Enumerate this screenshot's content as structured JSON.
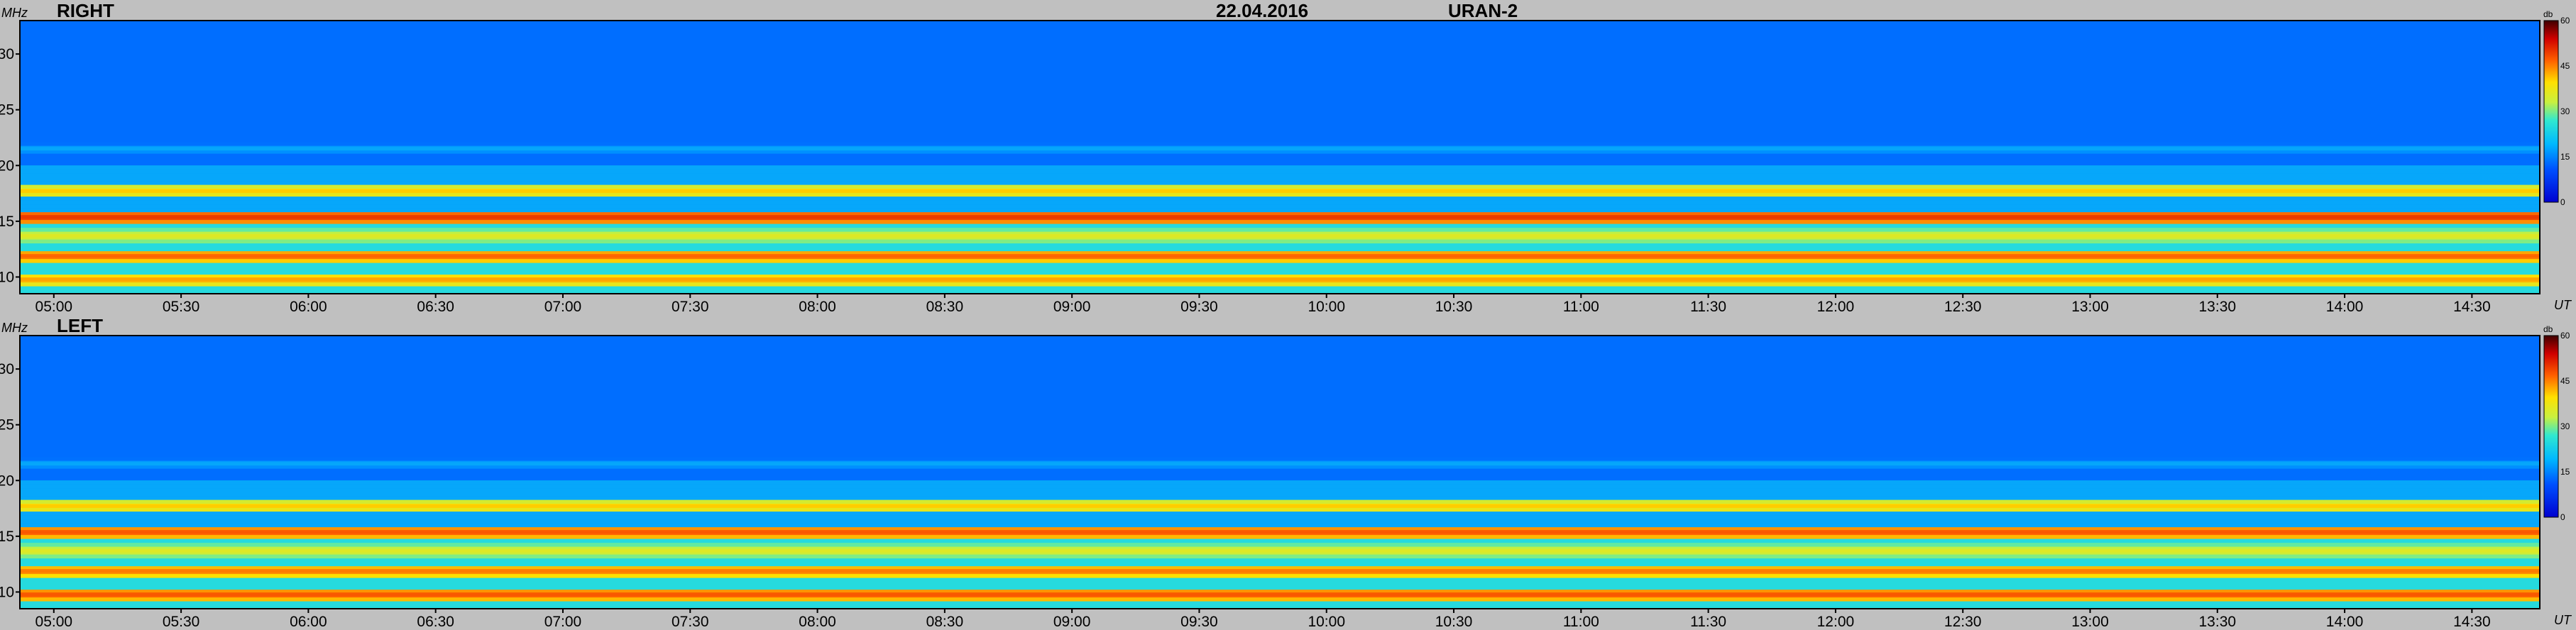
{
  "header": {
    "date": "22.04.2016",
    "station": "URAN-2"
  },
  "axis": {
    "y_unit": "MHz",
    "x_unit": "UT",
    "colorbar_unit": "db"
  },
  "chart_data": [
    {
      "type": "heatmap",
      "panel": "RIGHT",
      "title": "RIGHT",
      "ylabel": "MHz",
      "xlabel": "UT",
      "x_range": [
        "04:52",
        "14:46"
      ],
      "x_ticks": [
        "05:00",
        "05:30",
        "06:00",
        "06:30",
        "07:00",
        "07:30",
        "08:00",
        "08:30",
        "09:00",
        "09:30",
        "10:00",
        "10:30",
        "11:00",
        "11:30",
        "12:00",
        "12:30",
        "13:00",
        "13:30",
        "14:00",
        "14:30"
      ],
      "y_range": [
        8.5,
        33
      ],
      "y_ticks": [
        10,
        15,
        20,
        25,
        30
      ],
      "colorbar": {
        "unit": "db",
        "range": [
          0,
          60
        ],
        "ticks": [
          0,
          15,
          30,
          45,
          60
        ]
      },
      "bands": [
        {
          "freq_mhz": 17.7,
          "intensity_db": 40
        },
        {
          "freq_mhz": 15.4,
          "intensity_db": 48
        },
        {
          "freq_mhz": 13.7,
          "intensity_db": 36
        },
        {
          "freq_mhz": 11.9,
          "intensity_db": 45
        },
        {
          "freq_mhz": 9.8,
          "intensity_db": 42
        },
        {
          "freq_mhz": 21.5,
          "intensity_db": 18
        }
      ]
    },
    {
      "type": "heatmap",
      "panel": "LEFT",
      "title": "LEFT",
      "ylabel": "MHz",
      "xlabel": "UT",
      "x_range": [
        "04:52",
        "14:46"
      ],
      "x_ticks": [
        "05:00",
        "05:30",
        "06:00",
        "06:30",
        "07:00",
        "07:30",
        "08:00",
        "08:30",
        "09:00",
        "09:30",
        "10:00",
        "10:30",
        "11:00",
        "11:30",
        "12:00",
        "12:30",
        "13:00",
        "13:30",
        "14:00",
        "14:30"
      ],
      "y_range": [
        8.5,
        33
      ],
      "y_ticks": [
        10,
        15,
        20,
        25,
        30
      ],
      "colorbar": {
        "unit": "db",
        "range": [
          0,
          60
        ],
        "ticks": [
          0,
          15,
          30,
          45,
          60
        ]
      },
      "bands": [
        {
          "freq_mhz": 17.7,
          "intensity_db": 40
        },
        {
          "freq_mhz": 15.4,
          "intensity_db": 46
        },
        {
          "freq_mhz": 13.7,
          "intensity_db": 36
        },
        {
          "freq_mhz": 11.9,
          "intensity_db": 44
        },
        {
          "freq_mhz": 9.8,
          "intensity_db": 46
        },
        {
          "freq_mhz": 21.5,
          "intensity_db": 18
        }
      ]
    }
  ],
  "colors": {
    "background": "#c0c0c0",
    "low": "#0a4bd8",
    "mid": "#22c8e8",
    "high": "#e03a10"
  }
}
